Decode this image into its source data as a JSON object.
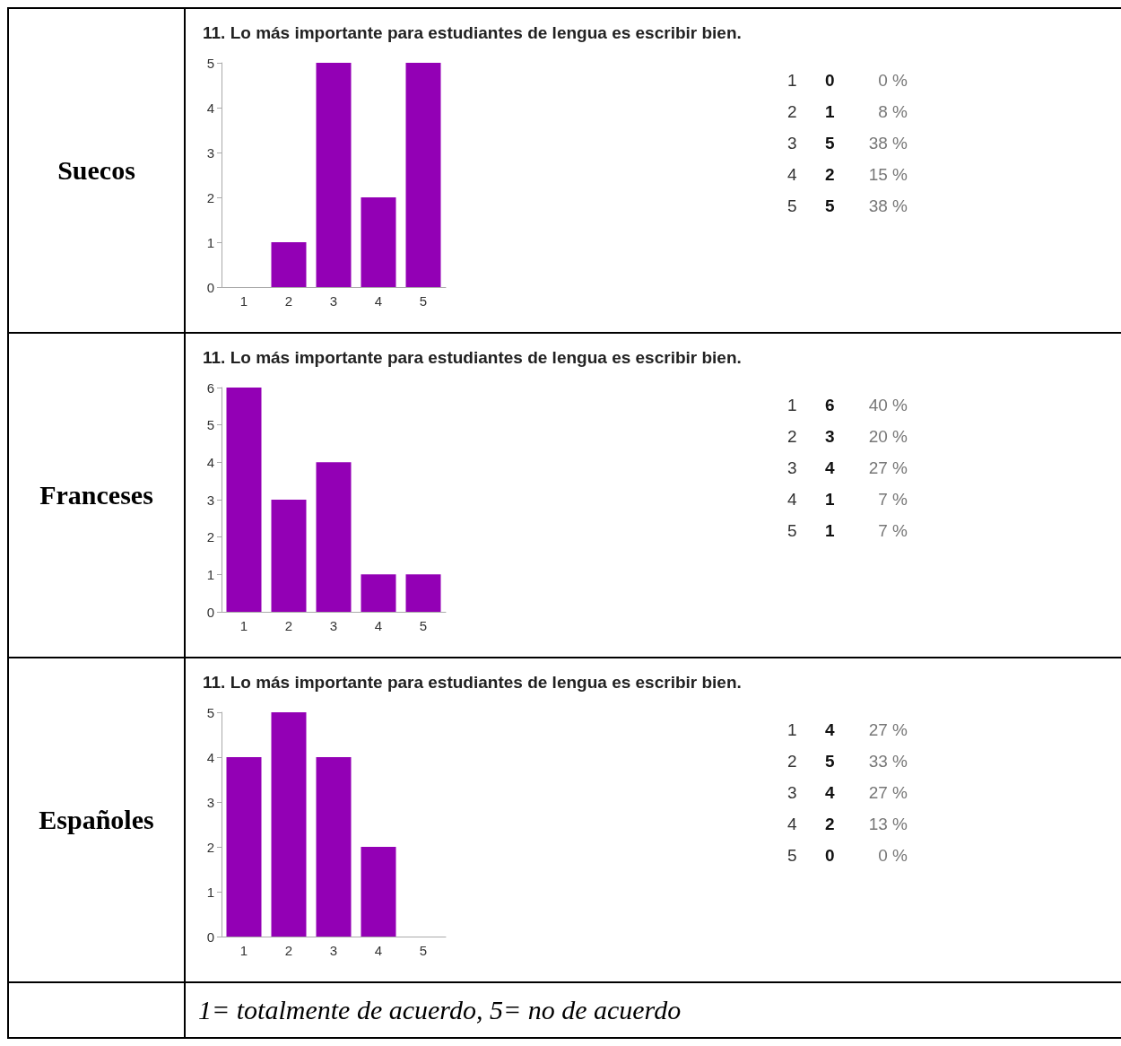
{
  "chart_data": [
    {
      "type": "bar",
      "title": "11. Lo más importante para estudiantes de lengua es escribir bien.",
      "categories": [
        "1",
        "2",
        "3",
        "4",
        "5"
      ],
      "values": [
        0,
        1,
        5,
        2,
        5
      ],
      "color": "#9300b5",
      "ylim": [
        0,
        5
      ],
      "yticks": [
        0,
        1,
        2,
        3,
        4,
        5
      ],
      "grid": false,
      "annotations": [
        "Suecos",
        "0",
        "0 %",
        "1",
        "8 %",
        "5",
        "38 %",
        "2",
        "15 %",
        "5",
        "38 %"
      ]
    },
    {
      "type": "bar",
      "title": "11. Lo más importante para estudiantes de lengua es escribir bien.",
      "categories": [
        "1",
        "2",
        "3",
        "4",
        "5"
      ],
      "values": [
        6,
        3,
        4,
        1,
        1
      ],
      "color": "#9300b5",
      "ylim": [
        0,
        6
      ],
      "yticks": [
        0,
        1,
        2,
        3,
        4,
        5,
        6
      ],
      "grid": false,
      "annotations": [
        "Franceses",
        "6",
        "40 %",
        "3",
        "20 %",
        "4",
        "27 %",
        "1",
        "7 %",
        "1",
        "7 %"
      ]
    },
    {
      "type": "bar",
      "title": "11. Lo más importante para estudiantes de lengua es escribir bien.",
      "categories": [
        "1",
        "2",
        "3",
        "4",
        "5"
      ],
      "values": [
        4,
        5,
        4,
        2,
        0
      ],
      "color": "#9300b5",
      "ylim": [
        0,
        5
      ],
      "yticks": [
        0,
        1,
        2,
        3,
        4,
        5
      ],
      "grid": false,
      "annotations": [
        "Españoles",
        "4",
        "27 %",
        "5",
        "33 %",
        "4",
        "27 %",
        "2",
        "13 %",
        "0",
        "0 %"
      ]
    },
    {
      "type": "other",
      "annotations": [
        "1= totalmente de acuerdo, 5= no de acuerdo"
      ]
    }
  ]
}
